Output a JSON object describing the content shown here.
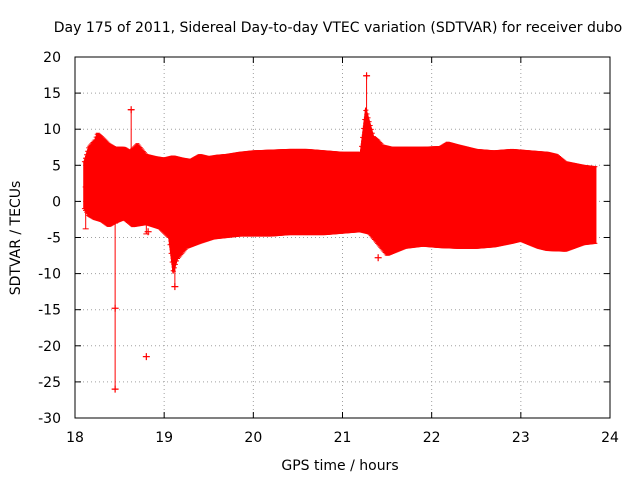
{
  "chart_data": {
    "type": "scatter",
    "title": "Day 175 of 2011, Sidereal Day-to-day VTEC variation (SDTVAR) for receiver dubo",
    "xlabel": "GPS time / hours",
    "ylabel": "SDTVAR / TECUs",
    "xlim": [
      18,
      24
    ],
    "ylim": [
      -30,
      20
    ],
    "xticks": [
      18,
      19,
      20,
      21,
      22,
      23,
      24
    ],
    "yticks": [
      20,
      15,
      10,
      5,
      0,
      -5,
      -10,
      -15,
      -20,
      -25,
      -30
    ],
    "grid": true,
    "series_color": "#ff0000",
    "upper_envelope": {
      "x": [
        18.1,
        18.15,
        18.22,
        18.25,
        18.3,
        18.38,
        18.45,
        18.55,
        18.62,
        18.7,
        18.8,
        18.9,
        19.0,
        19.1,
        19.2,
        19.3,
        19.4,
        19.5,
        19.6,
        19.7,
        19.85,
        20.0,
        20.2,
        20.4,
        20.6,
        20.8,
        21.0,
        21.2,
        21.26,
        21.35,
        21.4,
        21.45,
        21.55,
        21.7,
        21.9,
        22.1,
        22.18,
        22.3,
        22.5,
        22.7,
        22.9,
        23.1,
        23.3,
        23.4,
        23.5,
        23.7,
        23.84
      ],
      "y": [
        5.5,
        7.5,
        8.5,
        9.5,
        9.0,
        8.0,
        7.5,
        7.5,
        7.0,
        8.0,
        6.5,
        6.2,
        6.0,
        6.3,
        6.0,
        5.8,
        6.5,
        6.2,
        6.4,
        6.5,
        6.8,
        7.0,
        7.1,
        7.2,
        7.2,
        7.0,
        6.8,
        6.8,
        13.0,
        9.0,
        8.5,
        7.8,
        7.5,
        7.5,
        7.5,
        7.6,
        8.2,
        7.8,
        7.2,
        7.0,
        7.2,
        7.0,
        6.8,
        6.5,
        5.5,
        5.0,
        4.8
      ]
    },
    "lower_envelope": {
      "x": [
        18.1,
        18.15,
        18.22,
        18.3,
        18.38,
        18.45,
        18.55,
        18.65,
        18.8,
        18.95,
        19.05,
        19.1,
        19.15,
        19.25,
        19.4,
        19.55,
        19.7,
        19.85,
        20.0,
        20.2,
        20.4,
        20.6,
        20.8,
        21.0,
        21.2,
        21.3,
        21.4,
        21.5,
        21.6,
        21.7,
        21.9,
        22.1,
        22.3,
        22.5,
        22.7,
        22.9,
        23.0,
        23.1,
        23.2,
        23.3,
        23.5,
        23.7,
        23.84
      ],
      "y": [
        -1.0,
        -2.0,
        -2.5,
        -2.8,
        -3.5,
        -3.0,
        -2.5,
        -3.5,
        -3.2,
        -3.8,
        -5.0,
        -10.0,
        -8.0,
        -6.5,
        -5.8,
        -5.2,
        -5.0,
        -4.8,
        -4.8,
        -4.8,
        -4.6,
        -4.6,
        -4.6,
        -4.4,
        -4.2,
        -4.5,
        -6.0,
        -7.5,
        -7.0,
        -6.5,
        -6.2,
        -6.4,
        -6.5,
        -6.5,
        -6.3,
        -5.8,
        -5.5,
        -6.0,
        -6.5,
        -6.8,
        -6.9,
        -6.0,
        -5.8
      ]
    },
    "annotated_points": [
      {
        "x": 18.45,
        "y": -26.0
      },
      {
        "x": 18.45,
        "y": -14.8
      },
      {
        "x": 18.8,
        "y": -21.5
      },
      {
        "x": 21.27,
        "y": 17.4
      },
      {
        "x": 18.63,
        "y": 12.7
      },
      {
        "x": 19.12,
        "y": -11.8
      },
      {
        "x": 18.82,
        "y": -4.2
      },
      {
        "x": 21.4,
        "y": -7.8
      }
    ],
    "spikes": [
      {
        "x": 18.45,
        "y_top": -3.0,
        "y_bottom": -26.0
      },
      {
        "x": 18.8,
        "y_top": -2.5,
        "y_bottom": -4.5
      },
      {
        "x": 18.63,
        "y_top": 12.7,
        "y_bottom": 6.5
      },
      {
        "x": 21.27,
        "y_top": 17.4,
        "y_bottom": 6.5
      },
      {
        "x": 19.12,
        "y_top": -4.5,
        "y_bottom": -11.8
      },
      {
        "x": 18.12,
        "y_top": 2.0,
        "y_bottom": -3.8
      }
    ]
  }
}
